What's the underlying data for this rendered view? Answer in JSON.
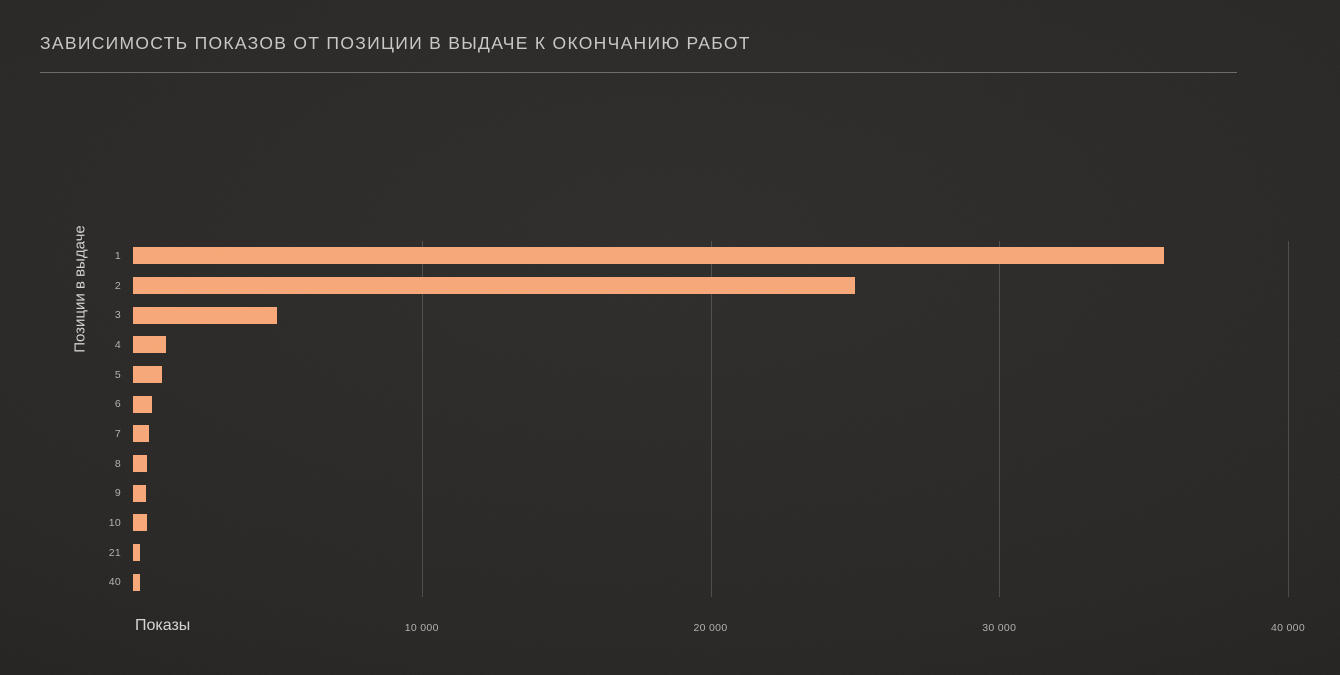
{
  "slide": {
    "title": "ЗАВИСИМОСТЬ ПОКАЗОВ ОТ ПОЗИЦИИ В ВЫДАЧЕ К ОКОНЧАНИЮ РАБОТ"
  },
  "colors": {
    "background": "#282624",
    "bar": "#f8a878",
    "grid": "#4f4d4a",
    "title_text": "#cac8c5",
    "tick_text": "#b2b0ad",
    "axis_label_text": "#d8d6d3"
  },
  "chart_data": {
    "type": "bar",
    "orientation": "horizontal",
    "title": "ЗАВИСИМОСТЬ ПОКАЗОВ ОТ ПОЗИЦИИ В ВЫДАЧЕ К ОКОНЧАНИЮ РАБОТ",
    "xlabel": "Показы",
    "ylabel": "Позиции в выдаче",
    "categories": [
      "1",
      "2",
      "3",
      "4",
      "5",
      "6",
      "7",
      "8",
      "9",
      "10",
      "21",
      "40"
    ],
    "values": [
      35700,
      25000,
      5000,
      1150,
      1000,
      650,
      550,
      480,
      450,
      470,
      250,
      230
    ],
    "xlim": [
      0,
      40000
    ],
    "xticks": [
      {
        "value": 10000,
        "label": "10 000"
      },
      {
        "value": 20000,
        "label": "20 000"
      },
      {
        "value": 30000,
        "label": "30 000"
      },
      {
        "value": 40000,
        "label": "40 000"
      }
    ],
    "grid": true,
    "legend": false,
    "bar_color": "#f8a878"
  }
}
